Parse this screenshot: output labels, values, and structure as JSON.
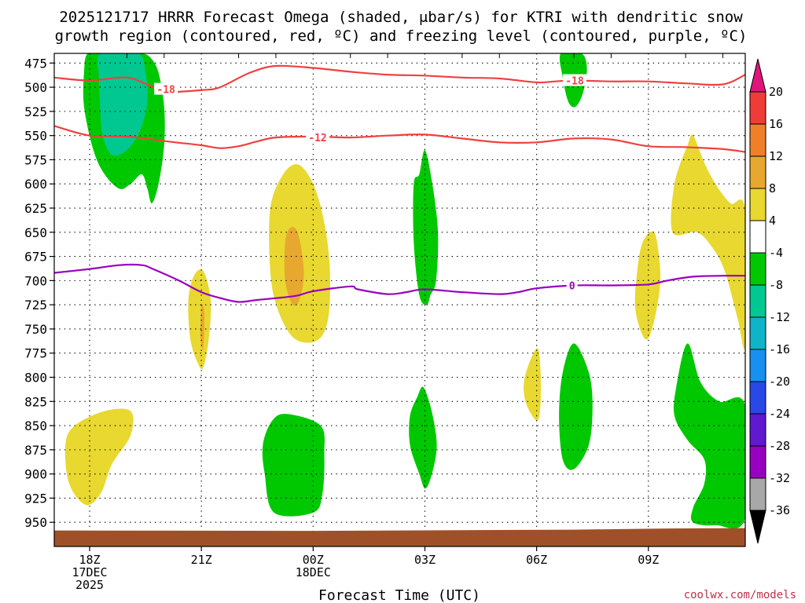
{
  "chart_data": {
    "type": "contour",
    "title_lines": [
      "2025121717 HRRR Forecast Omega (shaded, μbar/s) for KTRI with dendritic snow",
      "growth region (contoured, red, ºC) and freezing level (contoured, purple, ºC)"
    ],
    "xlabel": "Forecast Time (UTC)",
    "ylabel": "",
    "x_ticks": [
      {
        "hour": 0,
        "lines": [
          "18Z",
          "17DEC",
          "2025"
        ]
      },
      {
        "hour": 3,
        "lines": [
          "21Z"
        ]
      },
      {
        "hour": 6,
        "lines": [
          "00Z",
          "18DEC"
        ]
      },
      {
        "hour": 9,
        "lines": [
          "03Z"
        ]
      },
      {
        "hour": 12,
        "lines": [
          "06Z"
        ]
      },
      {
        "hour": 15,
        "lines": [
          "09Z"
        ]
      }
    ],
    "x_range_hours": [
      -0.95,
      17.6
    ],
    "y_ticks": [
      475,
      500,
      525,
      550,
      575,
      600,
      625,
      650,
      675,
      700,
      725,
      750,
      775,
      800,
      825,
      850,
      875,
      900,
      925,
      950
    ],
    "y_range_mb": [
      465,
      975
    ],
    "grid": true,
    "colorbar": {
      "levels": [
        20,
        16,
        12,
        8,
        4,
        -4,
        -8,
        -12,
        -16,
        -20,
        -24,
        -28,
        -32,
        -36
      ],
      "top_color": "#e0157a",
      "bottom_color": "#000000",
      "colors": [
        "#f03c38",
        "#f08028",
        "#e8a830",
        "#e8d830",
        "#ffffff",
        "#00c800",
        "#00c890",
        "#10b4c8",
        "#1890f0",
        "#2848e8",
        "#6018d0",
        "#9800c0",
        "#a8a8a8"
      ]
    },
    "omega_regions": [
      {
        "name": "upper-left-lift-outer",
        "color": "#00c800",
        "points": [
          [
            -0.05,
            465
          ],
          [
            0.4,
            465
          ],
          [
            0.9,
            465
          ],
          [
            1.4,
            465
          ],
          [
            1.65,
            470
          ],
          [
            1.85,
            485
          ],
          [
            2.0,
            520
          ],
          [
            2.0,
            560
          ],
          [
            1.85,
            600
          ],
          [
            1.67,
            620
          ],
          [
            1.55,
            605
          ],
          [
            1.4,
            590
          ],
          [
            1.1,
            600
          ],
          [
            0.8,
            605
          ],
          [
            0.4,
            590
          ],
          [
            0.1,
            565
          ],
          [
            -0.15,
            520
          ],
          [
            -0.15,
            485
          ]
        ]
      },
      {
        "name": "upper-left-lift-core",
        "color": "#00c890",
        "points": [
          [
            0.3,
            465
          ],
          [
            1.3,
            465
          ],
          [
            1.5,
            485
          ],
          [
            1.55,
            515
          ],
          [
            1.35,
            545
          ],
          [
            1.0,
            565
          ],
          [
            0.6,
            570
          ],
          [
            0.35,
            550
          ],
          [
            0.28,
            520
          ],
          [
            0.25,
            490
          ]
        ]
      },
      {
        "name": "upper-right-lift",
        "color": "#00c800",
        "points": [
          [
            12.65,
            465
          ],
          [
            13.2,
            465
          ],
          [
            13.35,
            480
          ],
          [
            13.25,
            505
          ],
          [
            13.05,
            520
          ],
          [
            12.85,
            515
          ],
          [
            12.7,
            490
          ]
        ]
      },
      {
        "name": "sink-20z",
        "color": "#e8d830",
        "points": [
          [
            2.8,
            695
          ],
          [
            3.05,
            690
          ],
          [
            3.25,
            720
          ],
          [
            3.2,
            760
          ],
          [
            3.05,
            790
          ],
          [
            2.9,
            785
          ],
          [
            2.7,
            760
          ],
          [
            2.65,
            720
          ]
        ]
      },
      {
        "name": "sink-20z-core",
        "color": "#e8a830",
        "points": [
          [
            3.0,
            725
          ],
          [
            3.08,
            735
          ],
          [
            3.05,
            770
          ],
          [
            2.98,
            760
          ]
        ]
      },
      {
        "name": "sink-23z",
        "color": "#e8d830",
        "points": [
          [
            5.2,
            590
          ],
          [
            5.6,
            580
          ],
          [
            6.0,
            600
          ],
          [
            6.3,
            640
          ],
          [
            6.45,
            690
          ],
          [
            6.4,
            740
          ],
          [
            6.1,
            762
          ],
          [
            5.5,
            760
          ],
          [
            5.05,
            730
          ],
          [
            4.85,
            690
          ],
          [
            4.85,
            625
          ]
        ]
      },
      {
        "name": "sink-23z-core",
        "color": "#e8a830",
        "points": [
          [
            5.4,
            645
          ],
          [
            5.6,
            652
          ],
          [
            5.75,
            690
          ],
          [
            5.65,
            718
          ],
          [
            5.45,
            725
          ],
          [
            5.25,
            700
          ],
          [
            5.25,
            660
          ]
        ]
      },
      {
        "name": "lift-03z-mid",
        "color": "#00c800",
        "points": [
          [
            9.0,
            565
          ],
          [
            9.2,
            600
          ],
          [
            9.35,
            650
          ],
          [
            9.3,
            700
          ],
          [
            9.15,
            715
          ],
          [
            9.05,
            725
          ],
          [
            8.85,
            715
          ],
          [
            8.7,
            660
          ],
          [
            8.7,
            600
          ],
          [
            8.85,
            590
          ]
        ]
      },
      {
        "name": "lift-03z-low",
        "color": "#00c800",
        "points": [
          [
            8.95,
            810
          ],
          [
            9.15,
            830
          ],
          [
            9.3,
            860
          ],
          [
            9.3,
            880
          ],
          [
            9.15,
            905
          ],
          [
            9.0,
            915
          ],
          [
            8.85,
            900
          ],
          [
            8.6,
            870
          ],
          [
            8.6,
            840
          ],
          [
            8.8,
            820
          ]
        ]
      },
      {
        "name": "sink-18z-low",
        "color": "#e8d830",
        "points": [
          [
            -0.65,
            870
          ],
          [
            -0.4,
            850
          ],
          [
            0.4,
            835
          ],
          [
            1.1,
            835
          ],
          [
            1.1,
            860
          ],
          [
            0.6,
            890
          ],
          [
            0.3,
            920
          ],
          [
            -0.1,
            932
          ],
          [
            -0.55,
            910
          ]
        ]
      },
      {
        "name": "lift-00z-low",
        "color": "#00c800",
        "points": [
          [
            4.9,
            845
          ],
          [
            5.3,
            838
          ],
          [
            6.2,
            850
          ],
          [
            6.3,
            880
          ],
          [
            6.25,
            920
          ],
          [
            6.0,
            940
          ],
          [
            4.95,
            940
          ],
          [
            4.7,
            900
          ],
          [
            4.65,
            870
          ]
        ]
      },
      {
        "name": "sink-0530z",
        "color": "#e8d830",
        "points": [
          [
            12.0,
            770
          ],
          [
            12.1,
            790
          ],
          [
            12.1,
            830
          ],
          [
            12.0,
            845
          ],
          [
            11.7,
            825
          ],
          [
            11.68,
            800
          ]
        ]
      },
      {
        "name": "lift-07z-low",
        "color": "#00c800",
        "points": [
          [
            13.0,
            765
          ],
          [
            13.4,
            795
          ],
          [
            13.5,
            830
          ],
          [
            13.4,
            870
          ],
          [
            13.0,
            895
          ],
          [
            12.7,
            885
          ],
          [
            12.6,
            840
          ],
          [
            12.7,
            795
          ]
        ]
      },
      {
        "name": "sink-0830z",
        "color": "#e8d830",
        "points": [
          [
            15.15,
            650
          ],
          [
            15.3,
            680
          ],
          [
            15.3,
            710
          ],
          [
            15.1,
            750
          ],
          [
            14.9,
            760
          ],
          [
            14.65,
            730
          ],
          [
            14.7,
            690
          ],
          [
            14.85,
            660
          ]
        ]
      },
      {
        "name": "sink-10z-upper",
        "color": "#e8d830",
        "points": [
          [
            16.05,
            560
          ],
          [
            16.2,
            550
          ],
          [
            16.5,
            578
          ],
          [
            16.8,
            600
          ],
          [
            17.2,
            620
          ],
          [
            17.6,
            628
          ],
          [
            17.6,
            765
          ],
          [
            17.4,
            740
          ],
          [
            17.05,
            690
          ],
          [
            16.7,
            665
          ],
          [
            16.3,
            650
          ],
          [
            15.65,
            650
          ],
          [
            15.7,
            600
          ]
        ]
      },
      {
        "name": "lift-10z-low",
        "color": "#00c800",
        "points": [
          [
            16.05,
            765
          ],
          [
            16.4,
            805
          ],
          [
            16.9,
            825
          ],
          [
            17.6,
            830
          ],
          [
            17.6,
            945
          ],
          [
            16.8,
            953
          ],
          [
            16.2,
            950
          ],
          [
            16.2,
            935
          ],
          [
            16.5,
            910
          ],
          [
            16.5,
            885
          ],
          [
            16.05,
            865
          ],
          [
            15.7,
            840
          ],
          [
            15.75,
            810
          ]
        ]
      }
    ],
    "dgz_contours": [
      {
        "value": -18,
        "label": "-18",
        "color": "#f04040",
        "label_at": [
          [
            2.05,
            502
          ],
          [
            13.02,
            493
          ]
        ],
        "points": [
          [
            -0.95,
            490
          ],
          [
            0.0,
            493
          ],
          [
            1.0,
            490
          ],
          [
            1.7,
            500
          ],
          [
            2.0,
            505
          ],
          [
            3.0,
            503
          ],
          [
            3.5,
            500
          ],
          [
            4.3,
            485
          ],
          [
            5.0,
            478
          ],
          [
            6.0,
            480
          ],
          [
            7.0,
            484
          ],
          [
            8.0,
            487
          ],
          [
            9.0,
            488
          ],
          [
            10.0,
            490
          ],
          [
            11.0,
            491
          ],
          [
            12.0,
            495
          ],
          [
            12.5,
            494
          ],
          [
            13.0,
            493
          ],
          [
            14.0,
            494
          ],
          [
            15.0,
            494
          ],
          [
            16.0,
            496
          ],
          [
            17.0,
            497
          ],
          [
            17.6,
            487
          ]
        ]
      },
      {
        "value": -12,
        "label": "-12",
        "color": "#f04040",
        "label_at": [
          [
            6.12,
            552
          ]
        ],
        "points": [
          [
            -0.95,
            540
          ],
          [
            0.0,
            550
          ],
          [
            1.0,
            551
          ],
          [
            1.7,
            554
          ],
          [
            2.3,
            557
          ],
          [
            3.0,
            560
          ],
          [
            3.5,
            563
          ],
          [
            4.0,
            561
          ],
          [
            4.5,
            556
          ],
          [
            5.0,
            552
          ],
          [
            6.0,
            551
          ],
          [
            7.0,
            552
          ],
          [
            8.0,
            550
          ],
          [
            9.0,
            549
          ],
          [
            10.0,
            553
          ],
          [
            11.0,
            557
          ],
          [
            12.0,
            557
          ],
          [
            13.0,
            553
          ],
          [
            14.0,
            554
          ],
          [
            15.0,
            561
          ],
          [
            16.0,
            562
          ],
          [
            17.0,
            564
          ],
          [
            17.6,
            567
          ]
        ]
      }
    ],
    "freezing_contour": {
      "value": 0,
      "label": "0",
      "color": "#9800c0",
      "label_at": [
        [
          12.95,
          705
        ]
      ],
      "points": [
        [
          -0.95,
          692
        ],
        [
          0.0,
          688
        ],
        [
          0.8,
          684
        ],
        [
          1.4,
          684
        ],
        [
          1.7,
          688
        ],
        [
          2.4,
          700
        ],
        [
          3.0,
          712
        ],
        [
          3.5,
          718
        ],
        [
          4.0,
          722
        ],
        [
          4.5,
          720
        ],
        [
          5.5,
          716
        ],
        [
          6.0,
          711
        ],
        [
          7.0,
          706
        ],
        [
          7.2,
          709
        ],
        [
          8.0,
          714
        ],
        [
          8.5,
          712
        ],
        [
          9.0,
          709
        ],
        [
          10.0,
          712
        ],
        [
          11.0,
          714
        ],
        [
          11.5,
          712
        ],
        [
          12.0,
          708
        ],
        [
          13.0,
          705
        ],
        [
          14.0,
          705
        ],
        [
          15.0,
          704
        ],
        [
          15.5,
          700
        ],
        [
          16.2,
          696
        ],
        [
          17.0,
          695
        ],
        [
          17.6,
          695
        ]
      ]
    },
    "terrain": {
      "color": "#a05028",
      "surface_mb": 958
    }
  },
  "credit": "coolwx.com/models"
}
